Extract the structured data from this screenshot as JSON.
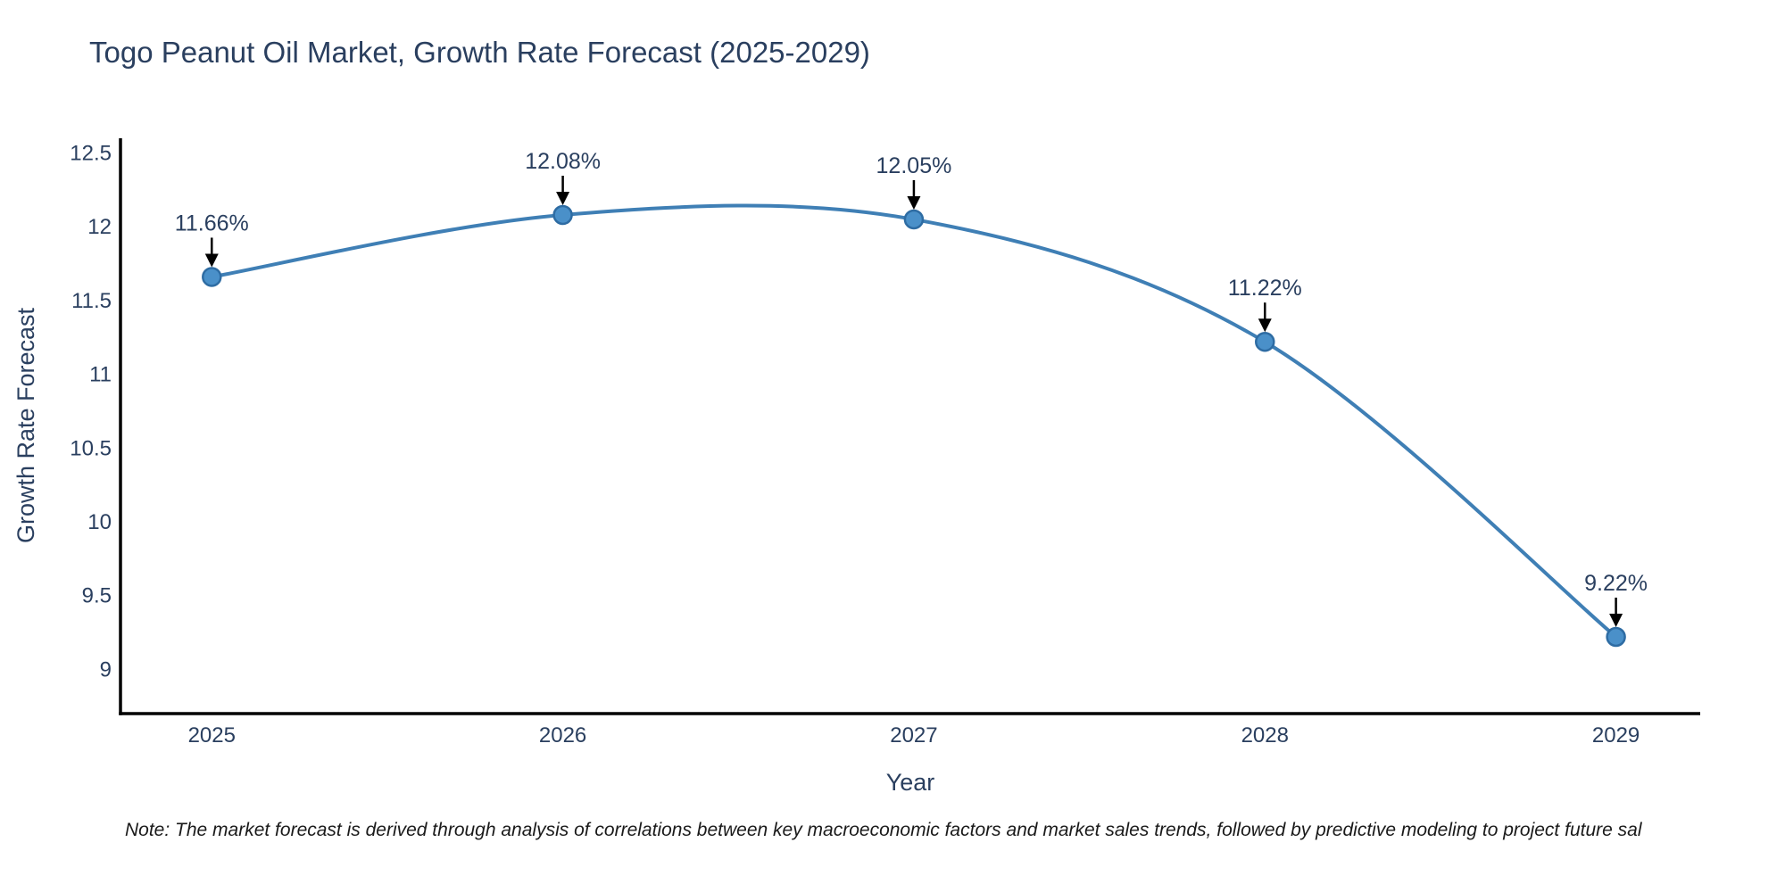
{
  "note": "Note: The market forecast is derived through analysis of correlations between key macroeconomic factors and market sales trends, followed by predictive modeling to project future sal",
  "chart_data": {
    "type": "line",
    "title": "Togo Peanut Oil Market, Growth Rate Forecast (2025-2029)",
    "xlabel": "Year",
    "ylabel": "Growth Rate Forecast",
    "x": [
      2025,
      2026,
      2027,
      2028,
      2029
    ],
    "x_tick_labels": [
      "2025",
      "2026",
      "2027",
      "2028",
      "2029"
    ],
    "values": [
      11.66,
      12.08,
      12.05,
      11.22,
      9.22
    ],
    "point_labels": [
      "11.66%",
      "12.08%",
      "12.05%",
      "11.22%",
      "9.22%"
    ],
    "y_ticks": [
      9,
      9.5,
      10,
      10.5,
      11,
      11.5,
      12,
      12.5
    ],
    "y_tick_labels": [
      "9",
      "9.5",
      "10",
      "10.5",
      "11",
      "11.5",
      "12",
      "12.5"
    ],
    "x_range": [
      2024.74,
      2029.24
    ],
    "y_range": [
      8.7,
      12.6
    ],
    "grid": false,
    "legend": "none",
    "line_shape": "spline",
    "colors": {
      "line": "#3f7fb5",
      "marker_fill": "#4a90c9",
      "marker_edge": "#2e6ca3",
      "axis_line": "#000000",
      "text": "#2a3f5f",
      "annotation_arrow": "#000000",
      "note_text": "#1a1a1a"
    }
  }
}
